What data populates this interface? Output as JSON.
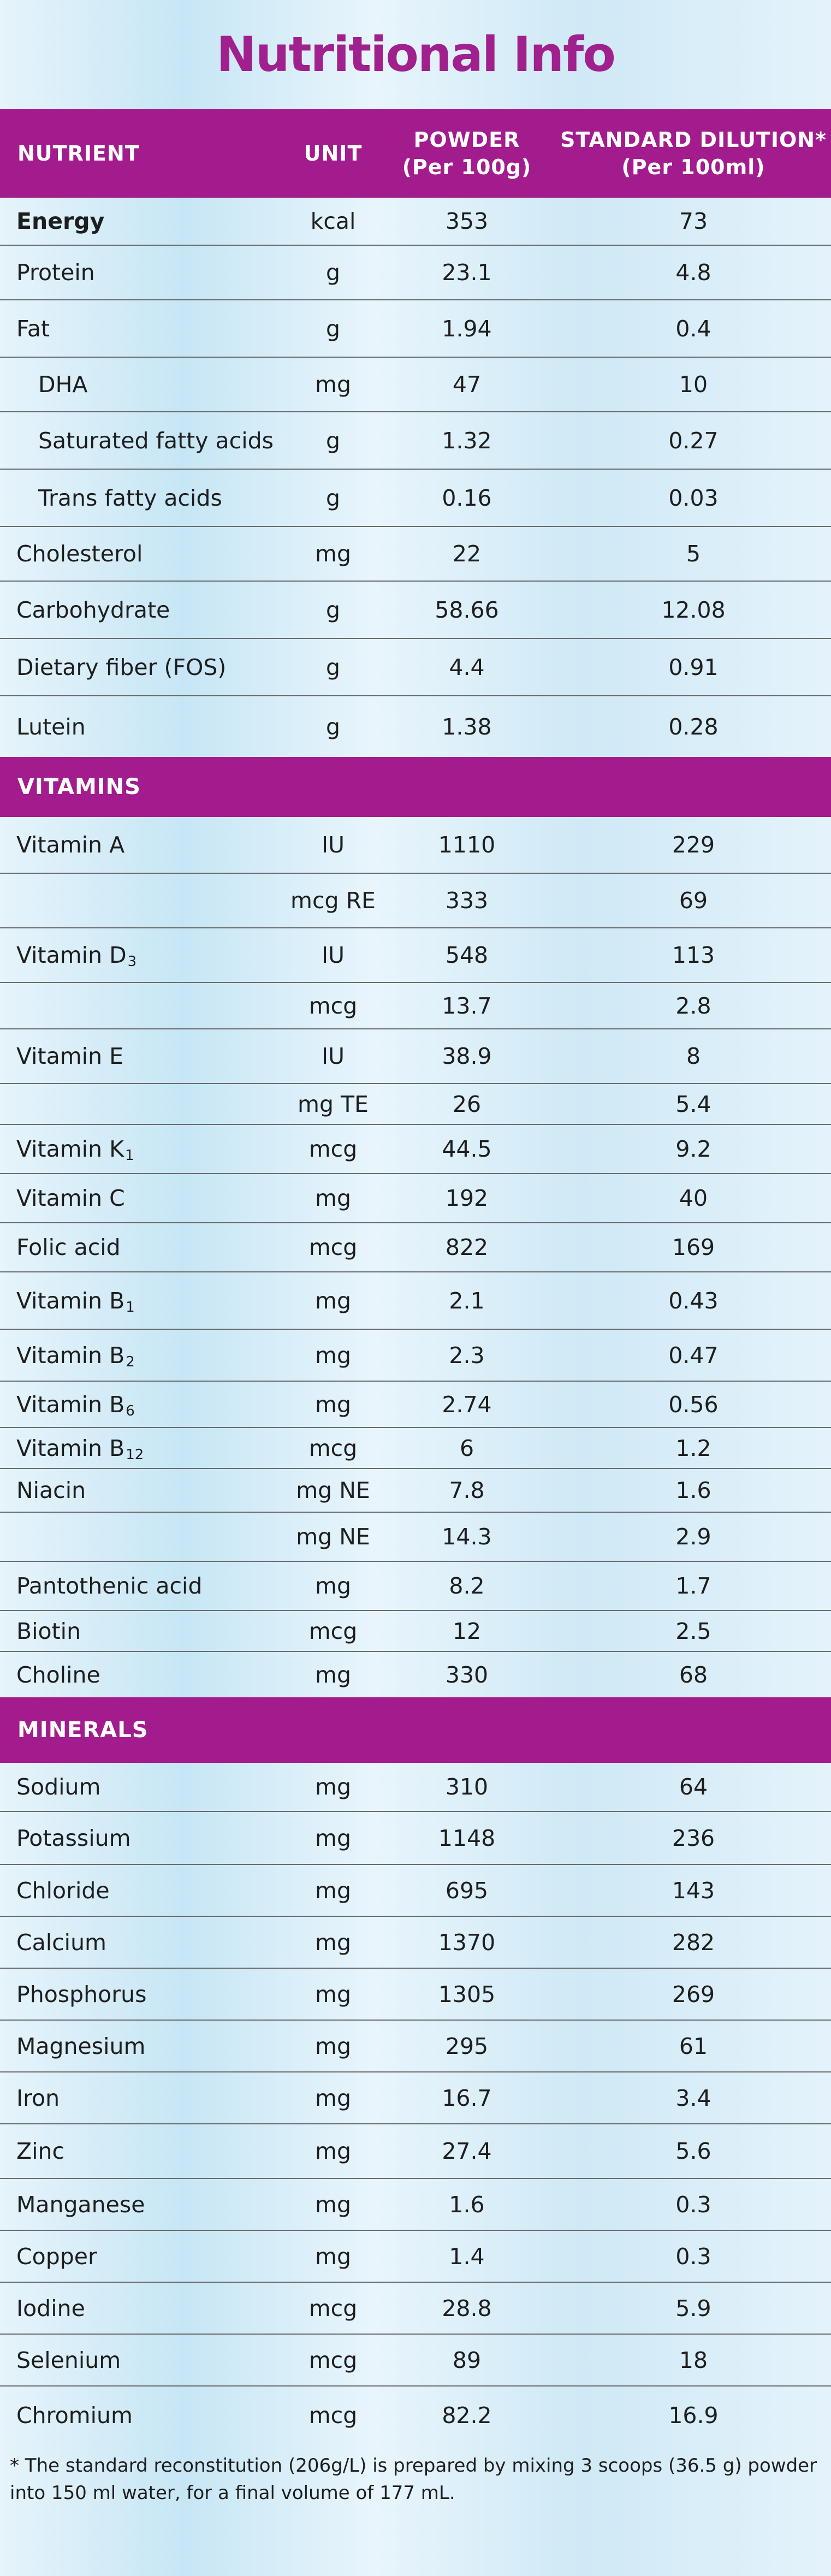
{
  "title": "Nutritional Info",
  "colors": {
    "accent": "#a21c8d",
    "title": "#a0208e"
  },
  "header": {
    "nutrient": "NUTRIENT",
    "unit": "UNIT",
    "powder_l1": "POWDER",
    "powder_l2": "(Per 100g)",
    "dilution_l1": "STANDARD DILUTION*",
    "dilution_l2": "(Per 100ml)"
  },
  "sections": {
    "vitamins": "VITAMINS",
    "minerals": "MINERALS"
  },
  "general": [
    {
      "name": "Energy",
      "unit": "kcal",
      "powder": "353",
      "dilution": "73"
    },
    {
      "name": "Protein",
      "unit": "g",
      "powder": "23.1",
      "dilution": "4.8"
    },
    {
      "name": "Fat",
      "unit": "g",
      "powder": "1.94",
      "dilution": "0.4"
    },
    {
      "name": "DHA",
      "unit": "mg",
      "powder": "47",
      "dilution": "10"
    },
    {
      "name": "Saturated fatty acids",
      "unit": "g",
      "powder": "1.32",
      "dilution": "0.27"
    },
    {
      "name": "Trans fatty acids",
      "unit": "g",
      "powder": "0.16",
      "dilution": "0.03"
    },
    {
      "name": "Cholesterol",
      "unit": "mg",
      "powder": "22",
      "dilution": "5"
    },
    {
      "name": "Carbohydrate",
      "unit": "g",
      "powder": "58.66",
      "dilution": "12.08"
    },
    {
      "name": "Dietary fiber (FOS)",
      "unit": "g",
      "powder": "4.4",
      "dilution": "0.91"
    },
    {
      "name": "Lutein",
      "unit": "g",
      "powder": "1.38",
      "dilution": "0.28"
    }
  ],
  "vitamins": [
    {
      "name": "Vitamin A",
      "sub": "",
      "unit": "IU",
      "powder": "1110",
      "dilution": "229"
    },
    {
      "name": "",
      "sub": "",
      "unit": "mcg RE",
      "powder": "333",
      "dilution": "69"
    },
    {
      "name": "Vitamin D",
      "sub": "3",
      "unit": "IU",
      "powder": "548",
      "dilution": "113"
    },
    {
      "name": "",
      "sub": "",
      "unit": "mcg",
      "powder": "13.7",
      "dilution": "2.8"
    },
    {
      "name": "Vitamin E",
      "sub": "",
      "unit": "IU",
      "powder": "38.9",
      "dilution": "8"
    },
    {
      "name": "",
      "sub": "",
      "unit": "mg TE",
      "powder": "26",
      "dilution": "5.4"
    },
    {
      "name": "Vitamin K",
      "sub": "1",
      "unit": "mcg",
      "powder": "44.5",
      "dilution": "9.2"
    },
    {
      "name": "Vitamin C",
      "sub": "",
      "unit": "mg",
      "powder": "192",
      "dilution": "40"
    },
    {
      "name": "Folic acid",
      "sub": "",
      "unit": "mcg",
      "powder": "822",
      "dilution": "169"
    },
    {
      "name": "Vitamin B",
      "sub": "1",
      "unit": "mg",
      "powder": "2.1",
      "dilution": "0.43"
    },
    {
      "name": "Vitamin B",
      "sub": "2",
      "unit": "mg",
      "powder": "2.3",
      "dilution": "0.47"
    },
    {
      "name": "Vitamin B",
      "sub": "6",
      "unit": "mg",
      "powder": "2.74",
      "dilution": "0.56"
    },
    {
      "name": "Vitamin B",
      "sub": "12",
      "unit": "mcg",
      "powder": "6",
      "dilution": "1.2"
    },
    {
      "name": "Niacin",
      "sub": "",
      "unit": "mg NE",
      "powder": "7.8",
      "dilution": "1.6"
    },
    {
      "name": "",
      "sub": "",
      "unit": "mg NE",
      "powder": "14.3",
      "dilution": "2.9"
    },
    {
      "name": "Pantothenic acid",
      "sub": "",
      "unit": "mg",
      "powder": "8.2",
      "dilution": "1.7"
    },
    {
      "name": "Biotin",
      "sub": "",
      "unit": "mcg",
      "powder": "12",
      "dilution": "2.5"
    },
    {
      "name": "Choline",
      "sub": "",
      "unit": "mg",
      "powder": "330",
      "dilution": "68"
    }
  ],
  "minerals": [
    {
      "name": "Sodium",
      "unit": "mg",
      "powder": "310",
      "dilution": "64"
    },
    {
      "name": "Potassium",
      "unit": "mg",
      "powder": "1148",
      "dilution": "236"
    },
    {
      "name": "Chloride",
      "unit": "mg",
      "powder": "695",
      "dilution": "143"
    },
    {
      "name": "Calcium",
      "unit": "mg",
      "powder": "1370",
      "dilution": "282"
    },
    {
      "name": "Phosphorus",
      "unit": "mg",
      "powder": "1305",
      "dilution": "269"
    },
    {
      "name": "Magnesium",
      "unit": "mg",
      "powder": "295",
      "dilution": "61"
    },
    {
      "name": "Iron",
      "unit": "mg",
      "powder": "16.7",
      "dilution": "3.4"
    },
    {
      "name": "Zinc",
      "unit": "mg",
      "powder": "27.4",
      "dilution": "5.6"
    },
    {
      "name": "Manganese",
      "unit": "mg",
      "powder": "1.6",
      "dilution": "0.3"
    },
    {
      "name": "Copper",
      "unit": "mg",
      "powder": "1.4",
      "dilution": "0.3"
    },
    {
      "name": "Iodine",
      "unit": "mcg",
      "powder": "28.8",
      "dilution": "5.9"
    },
    {
      "name": "Selenium",
      "unit": "mcg",
      "powder": "89",
      "dilution": "18"
    },
    {
      "name": "Chromium",
      "unit": "mcg",
      "powder": "82.2",
      "dilution": "16.9"
    }
  ],
  "footnote": "* The standard reconstitution (206g/L) is prepared by mixing 3 scoops (36.5 g) powder into 150 ml water, for a final volume of 177 mL."
}
